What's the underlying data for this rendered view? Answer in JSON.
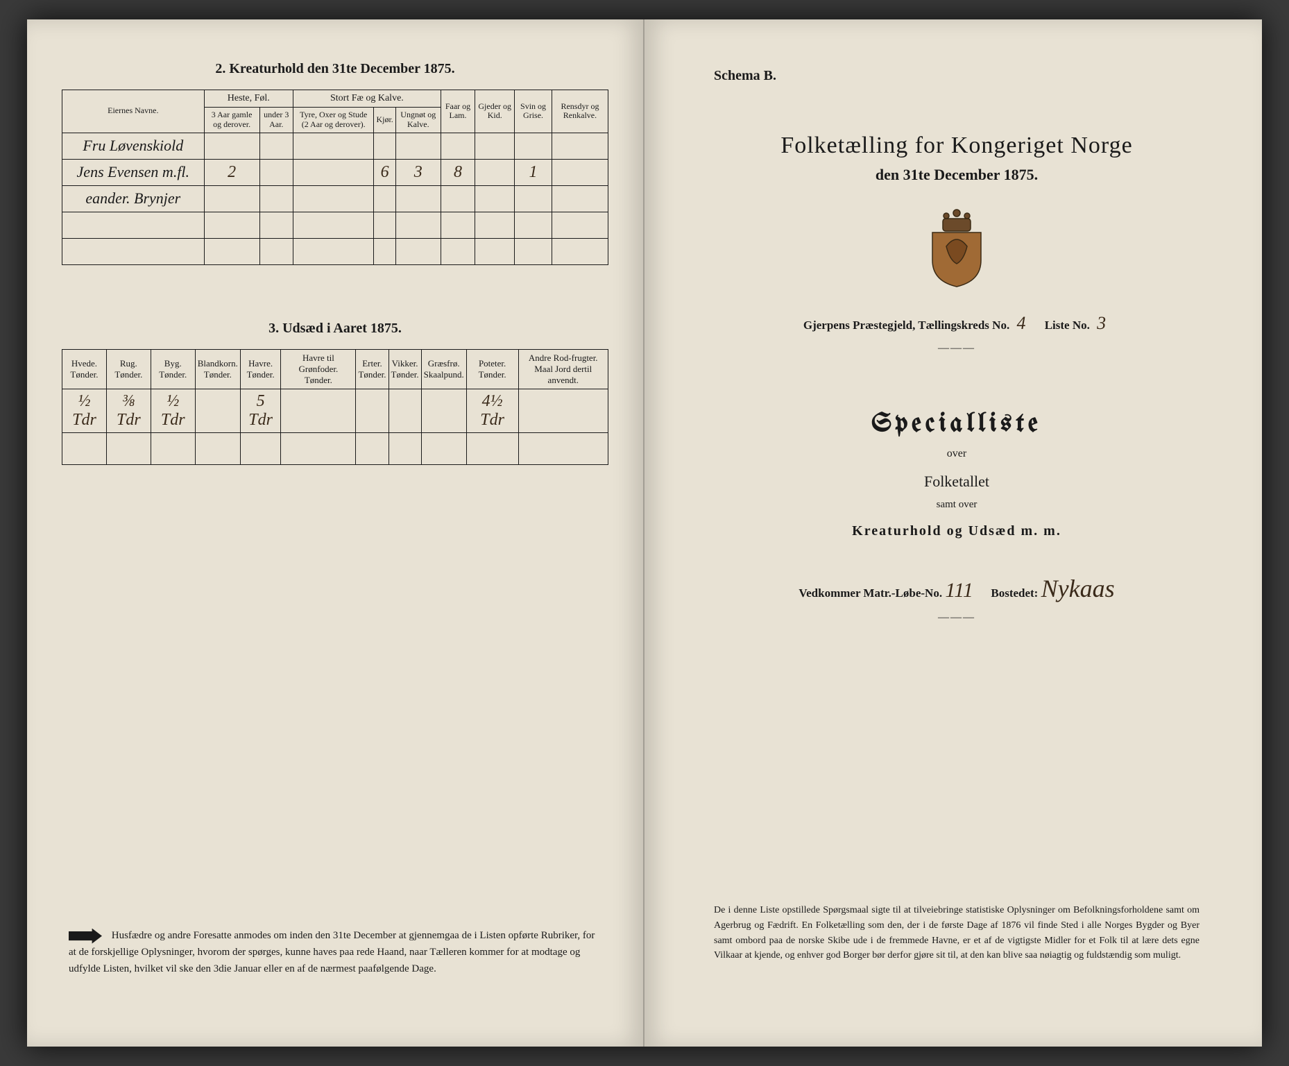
{
  "left": {
    "table2": {
      "title": "2.  Kreaturhold den 31te December 1875.",
      "owner_header": "Eiernes Navne.",
      "groups": [
        {
          "label": "Heste, Føl.",
          "cols": [
            "3 Aar gamle og derover.",
            "under 3 Aar."
          ]
        },
        {
          "label": "Stort Fæ og Kalve.",
          "cols": [
            "Tyre, Oxer og Stude (2 Aar og derover).",
            "Kjør.",
            "Ungnøt og Kalve."
          ]
        },
        {
          "label": "Faar og Lam.",
          "cols": [
            ""
          ]
        },
        {
          "label": "Gjeder og Kid.",
          "cols": [
            ""
          ]
        },
        {
          "label": "Svin og Grise.",
          "cols": [
            ""
          ]
        },
        {
          "label": "Rensdyr og Renkalve.",
          "cols": [
            ""
          ]
        }
      ],
      "rows": [
        {
          "owner": "Fru Løvenskiold",
          "vals": [
            "",
            "",
            "",
            "",
            "",
            "",
            "",
            "",
            ""
          ]
        },
        {
          "owner": "Jens Evensen m.fl.",
          "vals": [
            "2",
            "",
            "",
            "6",
            "3",
            "8",
            "",
            "1",
            ""
          ]
        },
        {
          "owner": "eander. Brynjer",
          "vals": [
            "",
            "",
            "",
            "",
            "",
            "",
            "",
            "",
            ""
          ]
        },
        {
          "owner": "",
          "vals": [
            "",
            "",
            "",
            "",
            "",
            "",
            "",
            "",
            ""
          ]
        },
        {
          "owner": "",
          "vals": [
            "",
            "",
            "",
            "",
            "",
            "",
            "",
            "",
            ""
          ]
        }
      ]
    },
    "table3": {
      "title": "3.  Udsæd i Aaret 1875.",
      "headers": [
        "Hvede.\nTønder.",
        "Rug.\nTønder.",
        "Byg.\nTønder.",
        "Blandkorn.\nTønder.",
        "Havre.\nTønder.",
        "Havre til Grønfoder.\nTønder.",
        "Erter.\nTønder.",
        "Vikker.\nTønder.",
        "Græsfrø.\nSkaalpund.",
        "Poteter.\nTønder.",
        "Andre Rod-frugter.\nMaal Jord dertil anvendt."
      ],
      "row": [
        "½ Tdr",
        "⅜ Tdr",
        "½ Tdr",
        "",
        "5 Tdr",
        "",
        "",
        "",
        "",
        "4½ Tdr",
        ""
      ]
    },
    "footnote": "Husfædre og andre Foresatte anmodes om inden den 31te December at gjennemgaa de i Listen opførte Rubriker, for at de forskjellige Oplysninger, hvorom der spørges, kunne haves paa rede Haand, naar Tælleren kommer for at modtage og udfylde Listen, hvilket vil ske den 3die Januar eller en af de nærmest paafølgende Dage."
  },
  "right": {
    "schema": "Schema B.",
    "title1": "Folketælling for Kongeriget Norge",
    "title2": "den 31te December 1875.",
    "coat_colors": {
      "crown": "#6b4a2a",
      "shield": "#a06a35",
      "outline": "#3a2a15"
    },
    "meta": {
      "prefix": "Gjerpens Præstegjeld,  Tællingskreds No.",
      "kreds": "4",
      "liste_label": "Liste No.",
      "liste": "3"
    },
    "spec": "Specialliste",
    "over": "over",
    "folketallet": "Folketallet",
    "samt": "samt over",
    "kreatur": "Kreaturhold og Udsæd m. m.",
    "matr": {
      "label1": "Vedkommer Matr.-Løbe-No.",
      "no": "111",
      "label2": "Bostedet:",
      "bosted": "Nykaas"
    },
    "footnote": "De i denne Liste opstillede Spørgsmaal sigte til at tilveiebringe statistiske Oplysninger om Befolkningsforholdene samt om Agerbrug og Fædrift.  En Folketælling som den, der i de første Dage af 1876 vil finde Sted i alle Norges Bygder og Byer samt ombord paa de norske Skibe ude i de fremmede Havne, er et af de vigtigste Midler for et Folk til at lære dets egne Vilkaar at kjende, og enhver god Borger bør derfor gjøre sit til, at den kan blive saa nøiagtig og fuldstændig som muligt."
  }
}
